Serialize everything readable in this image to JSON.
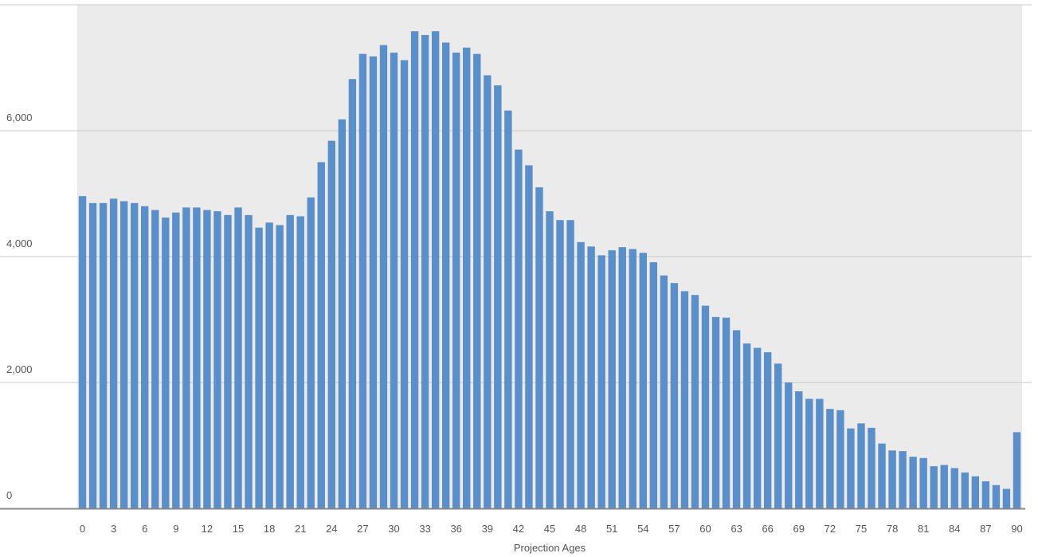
{
  "chart_data": {
    "type": "bar",
    "title": "",
    "xlabel": "Projection Ages",
    "ylabel": "",
    "ylim": [
      0,
      8000
    ],
    "yticks": [
      0,
      2000,
      4000,
      6000
    ],
    "ytick_labels": [
      "0",
      "2,000",
      "4,000",
      "6,000"
    ],
    "xtick_labels": [
      "0",
      "3",
      "6",
      "9",
      "12",
      "15",
      "18",
      "21",
      "24",
      "27",
      "30",
      "33",
      "36",
      "39",
      "42",
      "45",
      "48",
      "51",
      "54",
      "57",
      "60",
      "63",
      "66",
      "69",
      "72",
      "75",
      "78",
      "81",
      "84",
      "87",
      "90"
    ],
    "categories": [
      "0",
      "1",
      "2",
      "3",
      "4",
      "5",
      "6",
      "7",
      "8",
      "9",
      "10",
      "11",
      "12",
      "13",
      "14",
      "15",
      "16",
      "17",
      "18",
      "19",
      "20",
      "21",
      "22",
      "23",
      "24",
      "25",
      "26",
      "27",
      "28",
      "29",
      "30",
      "31",
      "32",
      "33",
      "34",
      "35",
      "36",
      "37",
      "38",
      "39",
      "40",
      "41",
      "42",
      "43",
      "44",
      "45",
      "46",
      "47",
      "48",
      "49",
      "50",
      "51",
      "52",
      "53",
      "54",
      "55",
      "56",
      "57",
      "58",
      "59",
      "60",
      "61",
      "62",
      "63",
      "64",
      "65",
      "66",
      "67",
      "68",
      "69",
      "70",
      "71",
      "72",
      "73",
      "74",
      "75",
      "76",
      "77",
      "78",
      "79",
      "80",
      "81",
      "82",
      "83",
      "84",
      "85",
      "86",
      "87",
      "88",
      "89",
      "90"
    ],
    "values": [
      4960,
      4850,
      4850,
      4920,
      4880,
      4850,
      4800,
      4740,
      4620,
      4700,
      4780,
      4780,
      4740,
      4720,
      4660,
      4780,
      4660,
      4460,
      4540,
      4500,
      4660,
      4640,
      4940,
      5500,
      5840,
      6180,
      6820,
      7220,
      7180,
      7360,
      7240,
      7120,
      7580,
      7520,
      7580,
      7400,
      7240,
      7320,
      7220,
      6880,
      6720,
      6320,
      5700,
      5450,
      5100,
      4720,
      4580,
      4580,
      4230,
      4160,
      4020,
      4100,
      4150,
      4120,
      4060,
      3910,
      3700,
      3580,
      3450,
      3390,
      3220,
      3040,
      3030,
      2830,
      2620,
      2550,
      2480,
      2300,
      2000,
      1860,
      1740,
      1740,
      1580,
      1560,
      1270,
      1350,
      1280,
      1030,
      920,
      910,
      820,
      800,
      670,
      690,
      640,
      570,
      510,
      430,
      370,
      310,
      1210
    ],
    "grid": true,
    "legend": "none",
    "colors": {
      "bar": "#5b8fc9",
      "plot_background": "#ebebeb",
      "gridline": "#c8c8c8",
      "axis": "#888888",
      "text": "#555555"
    }
  }
}
